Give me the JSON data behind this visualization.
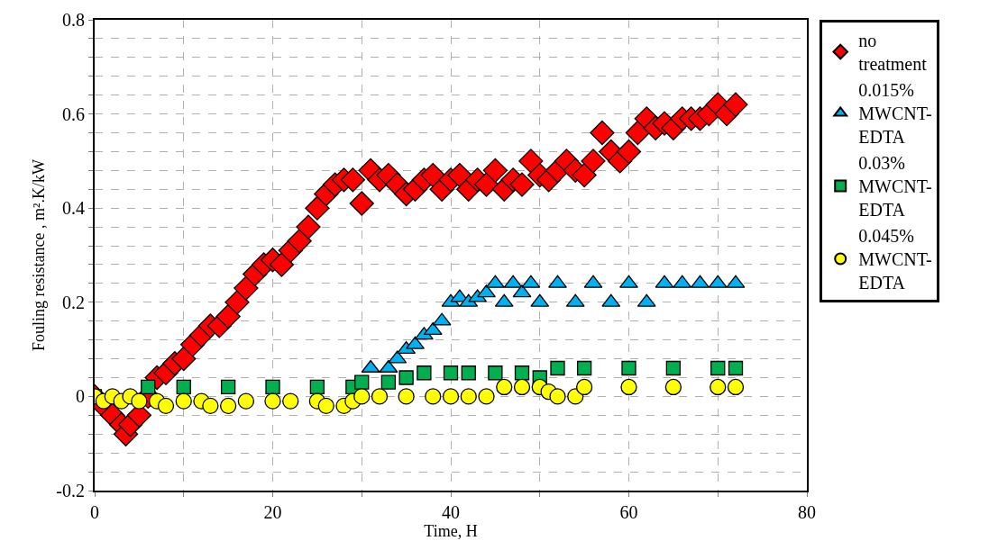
{
  "chart_data": {
    "type": "scatter",
    "xlabel": "Time, H",
    "ylabel": "Fouling resistance , m².K/kW",
    "xlim": [
      0,
      80
    ],
    "xticks": [
      0,
      {
        "value": 10,
        "label": null
      },
      20,
      {
        "value": 30,
        "label": null
      },
      40,
      {
        "value": 50,
        "label": null
      },
      60,
      {
        "value": 70,
        "label": null
      },
      80
    ],
    "ylim": [
      -0.2,
      0.8
    ],
    "yticks": [
      -0.2,
      {
        "value": -0.16,
        "label": null
      },
      {
        "value": -0.12,
        "label": null
      },
      {
        "value": -0.08,
        "label": null
      },
      {
        "value": -0.04,
        "label": null
      },
      0,
      {
        "value": 0.04,
        "label": null
      },
      {
        "value": 0.08,
        "label": null
      },
      {
        "value": 0.12,
        "label": null
      },
      {
        "value": 0.16,
        "label": null
      },
      0.2,
      {
        "value": 0.24,
        "label": null
      },
      {
        "value": 0.28,
        "label": null
      },
      {
        "value": 0.32,
        "label": null
      },
      {
        "value": 0.36,
        "label": null
      },
      0.4,
      {
        "value": 0.44,
        "label": null
      },
      {
        "value": 0.48,
        "label": null
      },
      {
        "value": 0.52,
        "label": null
      },
      {
        "value": 0.56,
        "label": null
      },
      0.6,
      {
        "value": 0.64,
        "label": null
      },
      {
        "value": 0.68,
        "label": null
      },
      {
        "value": 0.72,
        "label": null
      },
      {
        "value": 0.76,
        "label": null
      },
      0.8
    ],
    "grid": true,
    "legend": "right",
    "series": [
      {
        "name": "no treatment",
        "color": "#ff0000",
        "marker": "diamond",
        "x": [
          0,
          1,
          2,
          3,
          3.5,
          4,
          5,
          6,
          7,
          8,
          9,
          10,
          11,
          12,
          13,
          14,
          15,
          16,
          17,
          18,
          19,
          20,
          21,
          22,
          23,
          24,
          25,
          26,
          27,
          28,
          29,
          30,
          31,
          32,
          33,
          34,
          35,
          36,
          37,
          38,
          39,
          40,
          41,
          42,
          43,
          44,
          45,
          46,
          47,
          48,
          49,
          50,
          51,
          52,
          53,
          54,
          55,
          56,
          57,
          58,
          59,
          60,
          61,
          62,
          63,
          64,
          65,
          66,
          67,
          68,
          69,
          70,
          71,
          72
        ],
        "values": [
          0,
          -0.02,
          -0.04,
          -0.06,
          -0.08,
          -0.06,
          -0.04,
          0.0,
          0.04,
          0.05,
          0.07,
          0.08,
          0.11,
          0.13,
          0.15,
          0.15,
          0.17,
          0.2,
          0.23,
          0.26,
          0.28,
          0.29,
          0.28,
          0.31,
          0.33,
          0.36,
          0.4,
          0.43,
          0.45,
          0.46,
          0.46,
          0.41,
          0.48,
          0.46,
          0.47,
          0.45,
          0.43,
          0.44,
          0.46,
          0.47,
          0.44,
          0.46,
          0.47,
          0.44,
          0.46,
          0.45,
          0.48,
          0.44,
          0.46,
          0.45,
          0.5,
          0.47,
          0.46,
          0.48,
          0.5,
          0.48,
          0.47,
          0.5,
          0.56,
          0.52,
          0.5,
          0.52,
          0.56,
          0.59,
          0.57,
          0.58,
          0.57,
          0.59,
          0.59,
          0.59,
          0.6,
          0.62,
          0.6,
          0.62
        ]
      },
      {
        "name": "0.015% MWCNT-EDTA",
        "color": "#00b0f0",
        "marker": "triangle",
        "x": [
          31,
          33,
          34,
          35,
          36,
          37,
          38,
          39,
          40,
          41,
          42,
          43,
          44,
          45,
          46,
          47,
          48,
          49,
          50,
          52,
          54,
          56,
          58,
          60,
          62,
          64,
          66,
          68,
          70,
          72
        ],
        "values": [
          0.06,
          0.06,
          0.08,
          0.1,
          0.11,
          0.13,
          0.14,
          0.16,
          0.2,
          0.21,
          0.2,
          0.21,
          0.22,
          0.24,
          0.2,
          0.24,
          0.22,
          0.24,
          0.2,
          0.24,
          0.2,
          0.24,
          0.2,
          0.24,
          0.2,
          0.24,
          0.24,
          0.24,
          0.24,
          0.24
        ]
      },
      {
        "name": "0.03% MWCNT-EDTA",
        "color": "#00b050",
        "marker": "square",
        "x": [
          0,
          6,
          10,
          15,
          20,
          25,
          29,
          30,
          33,
          35,
          37,
          40,
          42,
          45,
          48,
          50,
          52,
          55,
          60,
          65,
          70,
          72
        ],
        "values": [
          0.0,
          0.02,
          0.02,
          0.02,
          0.02,
          0.02,
          0.02,
          0.03,
          0.03,
          0.04,
          0.05,
          0.05,
          0.05,
          0.05,
          0.05,
          0.04,
          0.06,
          0.06,
          0.06,
          0.06,
          0.06,
          0.06
        ]
      },
      {
        "name": "0.045% MWCNT-EDTA",
        "color": "#ffff00",
        "marker": "circle",
        "x": [
          0,
          1,
          2,
          3,
          4,
          5,
          7,
          8,
          10,
          12,
          13,
          15,
          17,
          20,
          22,
          25,
          26,
          28,
          29,
          30,
          32,
          35,
          38,
          40,
          42,
          44,
          46,
          48,
          50,
          51,
          52,
          54,
          55,
          60,
          65,
          70,
          72
        ],
        "values": [
          0,
          -0.01,
          0,
          -0.01,
          0,
          -0.01,
          -0.01,
          -0.02,
          -0.01,
          -0.01,
          -0.02,
          -0.02,
          -0.01,
          -0.01,
          -0.01,
          -0.01,
          -0.02,
          -0.02,
          -0.01,
          0,
          0,
          0,
          0,
          0,
          0,
          0,
          0.02,
          0.02,
          0.02,
          0.01,
          0,
          0,
          0.02,
          0.02,
          0.02,
          0.02,
          0.02
        ]
      }
    ]
  }
}
